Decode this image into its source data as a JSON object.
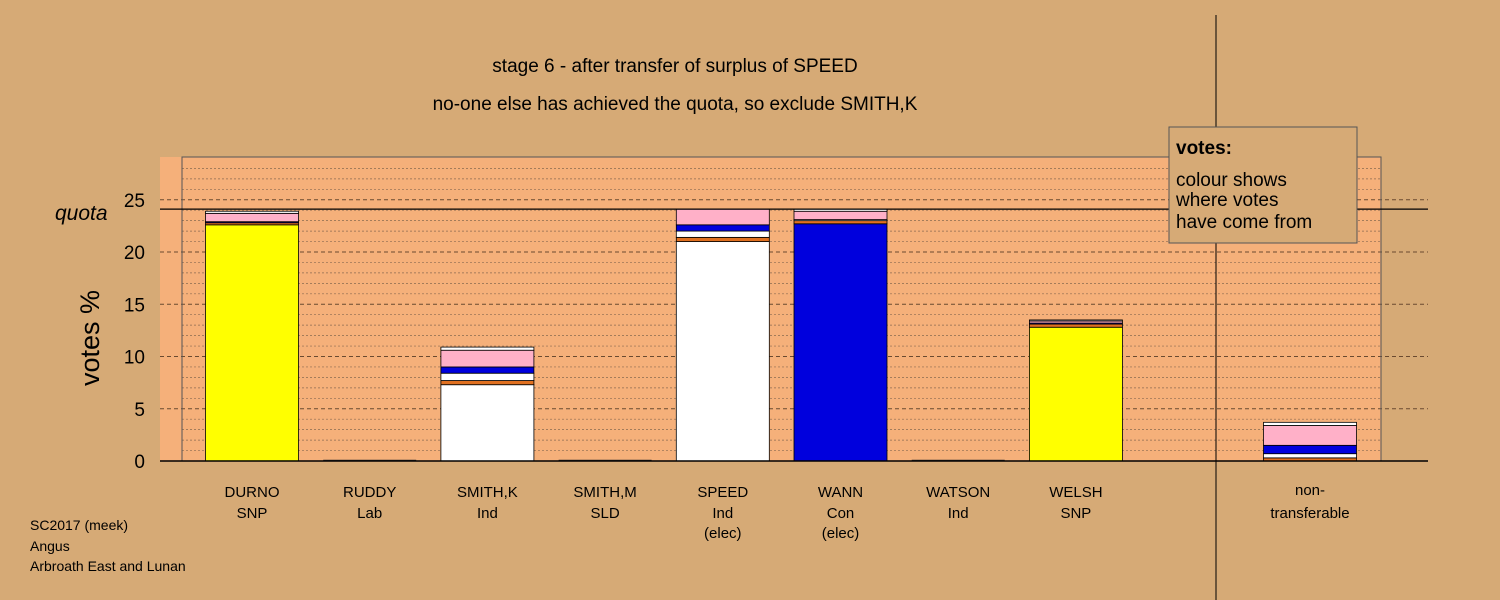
{
  "chart_data": {
    "type": "bar",
    "title": "stage 6 - after transfer of surplus of SPEED",
    "subtitle": "no-one else has achieved the quota, so exclude SMITH,K",
    "ylabel": "votes %",
    "ylim": [
      0,
      28
    ],
    "yticks": [
      "0",
      "5",
      "10",
      "15",
      "20",
      "25"
    ],
    "quota_label": "quota",
    "quota": 24.1,
    "candidates": [
      {
        "name": "DURNO",
        "party": "SNP",
        "note": "",
        "total": 23.9
      },
      {
        "name": "RUDDY",
        "party": "Lab",
        "note": "",
        "total": 0
      },
      {
        "name": "SMITH,K",
        "party": "Ind",
        "note": "",
        "total": 10.9
      },
      {
        "name": "SMITH,M",
        "party": "SLD",
        "note": "",
        "total": 0
      },
      {
        "name": "SPEED",
        "party": "Ind",
        "note": "(elec)",
        "total": 24.1
      },
      {
        "name": "WANN",
        "party": "Con",
        "note": "(elec)",
        "total": 24.1
      },
      {
        "name": "WATSON",
        "party": "Ind",
        "note": "",
        "total": 0
      },
      {
        "name": "WELSH",
        "party": "SNP",
        "note": "",
        "total": 13.5
      }
    ],
    "nontransferable": {
      "name": "non-",
      "party": "transferable",
      "note": ""
    },
    "segments": [
      [
        {
          "value": 22.6,
          "color": "#ffff00"
        },
        {
          "value": 0.2,
          "color": "#e07020"
        },
        {
          "value": 0.1,
          "color": "#0000dd"
        },
        {
          "value": 0.8,
          "color": "#ffb0c8"
        },
        {
          "value": 0.2,
          "color": "#ffffff"
        }
      ],
      [],
      [
        {
          "value": 7.3,
          "color": "#ffffff"
        },
        {
          "value": 0.4,
          "color": "#e07020"
        },
        {
          "value": 0.7,
          "color": "#ffffff"
        },
        {
          "value": 0.6,
          "color": "#0000dd"
        },
        {
          "value": 1.6,
          "color": "#ffb0c8"
        },
        {
          "value": 0.3,
          "color": "#ffffff"
        }
      ],
      [],
      [
        {
          "value": 21.0,
          "color": "#ffffff"
        },
        {
          "value": 0.4,
          "color": "#e07020"
        },
        {
          "value": 0.6,
          "color": "#ffffff"
        },
        {
          "value": 0.6,
          "color": "#0000dd"
        },
        {
          "value": 1.5,
          "color": "#ffb0c8"
        }
      ],
      [
        {
          "value": 22.7,
          "color": "#0000dd"
        },
        {
          "value": 0.3,
          "color": "#e07020"
        },
        {
          "value": 0.1,
          "color": "#ffffff"
        },
        {
          "value": 0.8,
          "color": "#ffb0c8"
        },
        {
          "value": 0.2,
          "color": "#ffffff"
        }
      ],
      [],
      [
        {
          "value": 12.8,
          "color": "#ffff00"
        },
        {
          "value": 0.3,
          "color": "#e07020"
        },
        {
          "value": 0.1,
          "color": "#0000dd"
        },
        {
          "value": 0.2,
          "color": "#ffb0c8"
        },
        {
          "value": 0.1,
          "color": "#ffffff"
        }
      ]
    ],
    "nontransferable_segments": [
      {
        "value": 0.3,
        "color": "#e07020"
      },
      {
        "value": 0.4,
        "color": "#ffffff"
      },
      {
        "value": 0.8,
        "color": "#0000dd"
      },
      {
        "value": 1.9,
        "color": "#ffb0c8"
      },
      {
        "value": 0.3,
        "color": "#ffffff"
      }
    ],
    "legend": {
      "heading": "votes:",
      "lines": [
        "colour shows",
        "where votes",
        "have come from"
      ],
      "placement": "top-right"
    },
    "grid": true
  },
  "footer": {
    "lines": [
      "SC2017 (meek)",
      "Angus",
      "Arbroath East and Lunan"
    ]
  },
  "colors": {
    "page_bg": "#d6aa76",
    "plot_bg": "#f5b07a",
    "legend_bg": "#d6aa76"
  }
}
